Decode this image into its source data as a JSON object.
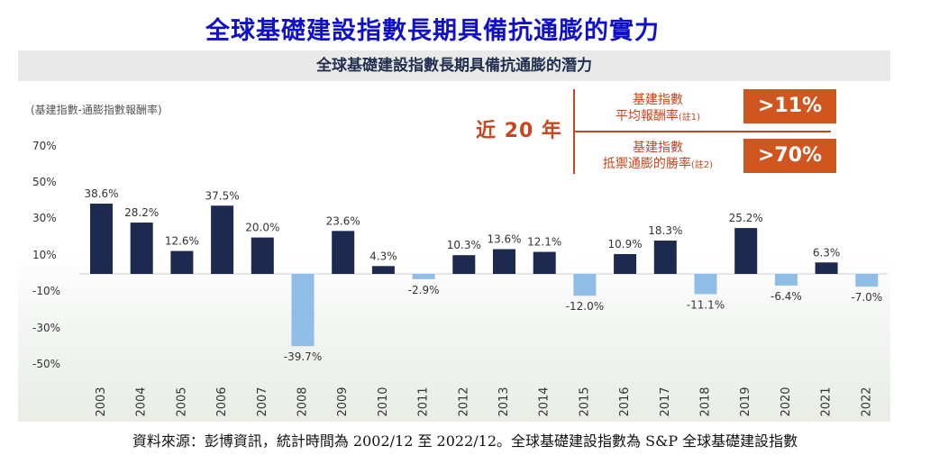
{
  "header": {
    "main_title": "全球基礎建設指數長期具備抗通膨的實力",
    "subtitle": "全球基礎建設指數長期具備抗通膨的潛力"
  },
  "callout": {
    "period": "近 20 年",
    "note1_line1": "基建指數",
    "note1_line2": "平均報酬率",
    "note1_mark": "(註1)",
    "note1_value": ">11%",
    "note2_line1": "基建指數",
    "note2_line2": "抵禦通膨的勝率",
    "note2_mark": "(註2)",
    "note2_value": ">70%",
    "accent_color": "#d0551f"
  },
  "footer": {
    "source": "資料來源：彭博資訊，統計時間為 2002/12 至 2022/12。全球基礎建設指數為 S&P 全球基礎建設指數"
  },
  "chart_data": {
    "type": "bar",
    "title": "全球基礎建設指數長期具備抗通膨的潛力",
    "ylabel": "(基建指數-通膨指數報酬率)",
    "xlabel": "",
    "ylim": [
      -50,
      70
    ],
    "yticks": [
      "70%",
      "50%",
      "30%",
      "10%",
      "-10%",
      "-30%",
      "-50%"
    ],
    "ytick_values": [
      70,
      50,
      30,
      10,
      -10,
      -30,
      -50
    ],
    "categories": [
      "2003",
      "2004",
      "2005",
      "2006",
      "2007",
      "2008",
      "2009",
      "2010",
      "2011",
      "2012",
      "2013",
      "2014",
      "2015",
      "2016",
      "2017",
      "2018",
      "2019",
      "2020",
      "2021",
      "2022"
    ],
    "values": [
      38.6,
      28.2,
      12.6,
      37.5,
      20.0,
      -39.7,
      23.6,
      4.3,
      -2.9,
      10.3,
      13.6,
      12.1,
      -12.0,
      10.9,
      18.3,
      -11.1,
      25.2,
      -6.4,
      6.3,
      -7.0
    ],
    "value_labels": [
      "38.6%",
      "28.2%",
      "12.6%",
      "37.5%",
      "20.0%",
      "-39.7%",
      "23.6%",
      "4.3%",
      "-2.9%",
      "10.3%",
      "13.6%",
      "12.1%",
      "-12.0%",
      "10.9%",
      "18.3%",
      "-11.1%",
      "25.2%",
      "-6.4%",
      "6.3%",
      "-7.0%"
    ],
    "positive_color": "#1d2a4f",
    "negative_color": "#8fbde6",
    "grid": false
  }
}
